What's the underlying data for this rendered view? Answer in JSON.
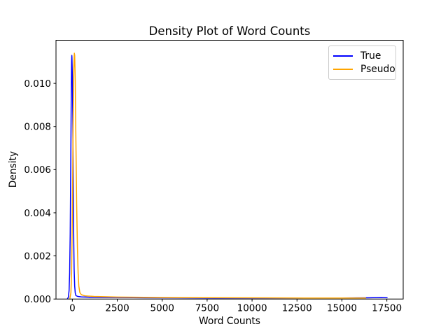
{
  "chart_data": {
    "type": "line",
    "subtype": "kde-density",
    "title": "Density Plot of Word Counts",
    "xlabel": "Word Counts",
    "ylabel": "Density",
    "xlim": [
      -910,
      18410
    ],
    "ylim": [
      0,
      0.012
    ],
    "grid": false,
    "background_color": "#ffffff",
    "spine_color": "#000000",
    "xticks": [
      {
        "v": 0,
        "label": "0"
      },
      {
        "v": 2500,
        "label": "2500"
      },
      {
        "v": 5000,
        "label": "5000"
      },
      {
        "v": 7500,
        "label": "7500"
      },
      {
        "v": 10000,
        "label": "10000"
      },
      {
        "v": 12500,
        "label": "12500"
      },
      {
        "v": 15000,
        "label": "15000"
      },
      {
        "v": 17500,
        "label": "17500"
      }
    ],
    "yticks": [
      {
        "v": 0.0,
        "label": "0.000"
      },
      {
        "v": 0.002,
        "label": "0.002"
      },
      {
        "v": 0.004,
        "label": "0.004"
      },
      {
        "v": 0.006,
        "label": "0.006"
      },
      {
        "v": 0.008,
        "label": "0.008"
      },
      {
        "v": 0.01,
        "label": "0.010"
      }
    ],
    "legend": {
      "position": "upper right",
      "border_color": "#cccccc"
    },
    "series": [
      {
        "name": "True",
        "color": "#0000ff",
        "peak": {
          "x": -30,
          "density": 0.0113
        },
        "x_range": [
          -280,
          17536
        ],
        "points": [
          [
            -280,
            1e-05
          ],
          [
            -220,
            8e-05
          ],
          [
            -180,
            0.0004
          ],
          [
            -150,
            0.0012
          ],
          [
            -120,
            0.003
          ],
          [
            -90,
            0.0062
          ],
          [
            -60,
            0.0095
          ],
          [
            -40,
            0.011
          ],
          [
            -30,
            0.0113
          ],
          [
            -20,
            0.0112
          ],
          [
            0,
            0.0103
          ],
          [
            20,
            0.0086
          ],
          [
            40,
            0.0064
          ],
          [
            60,
            0.0043
          ],
          [
            80,
            0.0026
          ],
          [
            100,
            0.0014
          ],
          [
            130,
            0.0006
          ],
          [
            160,
            0.00028
          ],
          [
            200,
            0.00016
          ],
          [
            300,
            0.00012
          ],
          [
            500,
            0.0001
          ],
          [
            1000,
            8e-05
          ],
          [
            2000,
            7e-05
          ],
          [
            4000,
            6e-05
          ],
          [
            8000,
            5e-05
          ],
          [
            12000,
            5e-05
          ],
          [
            15000,
            5e-05
          ],
          [
            16500,
            6e-05
          ],
          [
            17200,
            7e-05
          ],
          [
            17536,
            6e-05
          ]
        ]
      },
      {
        "name": "Pseudo",
        "color": "#ffa500",
        "peak": {
          "x": 110,
          "density": 0.0114
        },
        "x_range": [
          -140,
          16340
        ],
        "points": [
          [
            -140,
            2e-05
          ],
          [
            -80,
            0.0003
          ],
          [
            -40,
            0.0012
          ],
          [
            0,
            0.004
          ],
          [
            40,
            0.008
          ],
          [
            80,
            0.0107
          ],
          [
            110,
            0.0114
          ],
          [
            130,
            0.0113
          ],
          [
            160,
            0.0101
          ],
          [
            200,
            0.0072
          ],
          [
            240,
            0.0044
          ],
          [
            280,
            0.0024
          ],
          [
            320,
            0.0012
          ],
          [
            360,
            0.0006
          ],
          [
            420,
            0.0003
          ],
          [
            500,
            0.0002
          ],
          [
            700,
            0.00015
          ],
          [
            1200,
            0.00012
          ],
          [
            2500,
            9e-05
          ],
          [
            5000,
            7e-05
          ],
          [
            9000,
            6e-05
          ],
          [
            13000,
            5e-05
          ],
          [
            16340,
            5e-05
          ]
        ]
      }
    ]
  }
}
